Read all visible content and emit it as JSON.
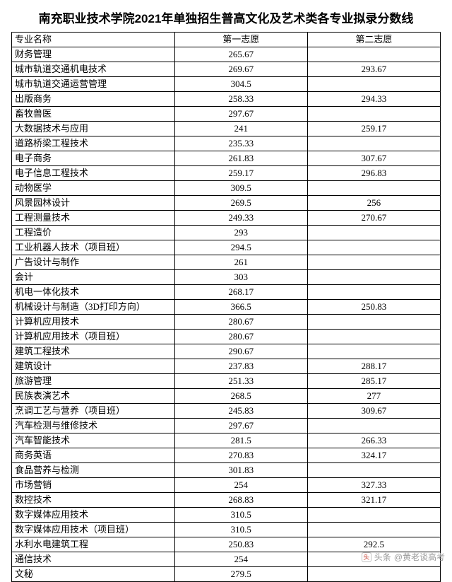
{
  "title": "南充职业技术学院2021年单独招生普高文化及艺术类各专业拟录分数线",
  "columns": [
    "专业名称",
    "第一志愿",
    "第二志愿"
  ],
  "rows": [
    [
      "财务管理",
      "265.67",
      ""
    ],
    [
      "城市轨道交通机电技术",
      "269.67",
      "293.67"
    ],
    [
      "城市轨道交通运营管理",
      "304.5",
      ""
    ],
    [
      "出版商务",
      "258.33",
      "294.33"
    ],
    [
      "畜牧兽医",
      "297.67",
      ""
    ],
    [
      "大数据技术与应用",
      "241",
      "259.17"
    ],
    [
      "道路桥梁工程技术",
      "235.33",
      ""
    ],
    [
      "电子商务",
      "261.83",
      "307.67"
    ],
    [
      "电子信息工程技术",
      "259.17",
      "296.83"
    ],
    [
      "动物医学",
      "309.5",
      ""
    ],
    [
      "风景园林设计",
      "269.5",
      "256"
    ],
    [
      "工程测量技术",
      "249.33",
      "270.67"
    ],
    [
      "工程造价",
      "293",
      ""
    ],
    [
      "工业机器人技术（项目班）",
      "294.5",
      ""
    ],
    [
      "广告设计与制作",
      "261",
      ""
    ],
    [
      "会计",
      "303",
      ""
    ],
    [
      "机电一体化技术",
      "268.17",
      ""
    ],
    [
      "机械设计与制造（3D打印方向）",
      "366.5",
      "250.83"
    ],
    [
      "计算机应用技术",
      "280.67",
      ""
    ],
    [
      "计算机应用技术（项目班）",
      "280.67",
      ""
    ],
    [
      "建筑工程技术",
      "290.67",
      ""
    ],
    [
      "建筑设计",
      "237.83",
      "288.17"
    ],
    [
      "旅游管理",
      "251.33",
      "285.17"
    ],
    [
      "民族表演艺术",
      "268.5",
      "277"
    ],
    [
      "烹调工艺与营养（项目班）",
      "245.83",
      "309.67"
    ],
    [
      "汽车检测与维修技术",
      "297.67",
      ""
    ],
    [
      "汽车智能技术",
      "281.5",
      "266.33"
    ],
    [
      "商务英语",
      "270.83",
      "324.17"
    ],
    [
      "食品营养与检测",
      "301.83",
      ""
    ],
    [
      "市场营销",
      "254",
      "327.33"
    ],
    [
      "数控技术",
      "268.83",
      "321.17"
    ],
    [
      "数字媒体应用技术",
      "310.5",
      ""
    ],
    [
      "数字媒体应用技术（项目班）",
      "310.5",
      ""
    ],
    [
      "水利水电建筑工程",
      "250.83",
      "292.5"
    ],
    [
      "通信技术",
      "254",
      ""
    ],
    [
      "文秘",
      "279.5",
      ""
    ]
  ],
  "watermark": {
    "source": "头条",
    "author": "@黄老谈高考"
  },
  "style": {
    "text_color": "#000000",
    "border_color": "#000000",
    "background": "#ffffff",
    "title_fontsize": 17,
    "cell_fontsize": 13,
    "watermark_color": "#9a9a9a"
  }
}
